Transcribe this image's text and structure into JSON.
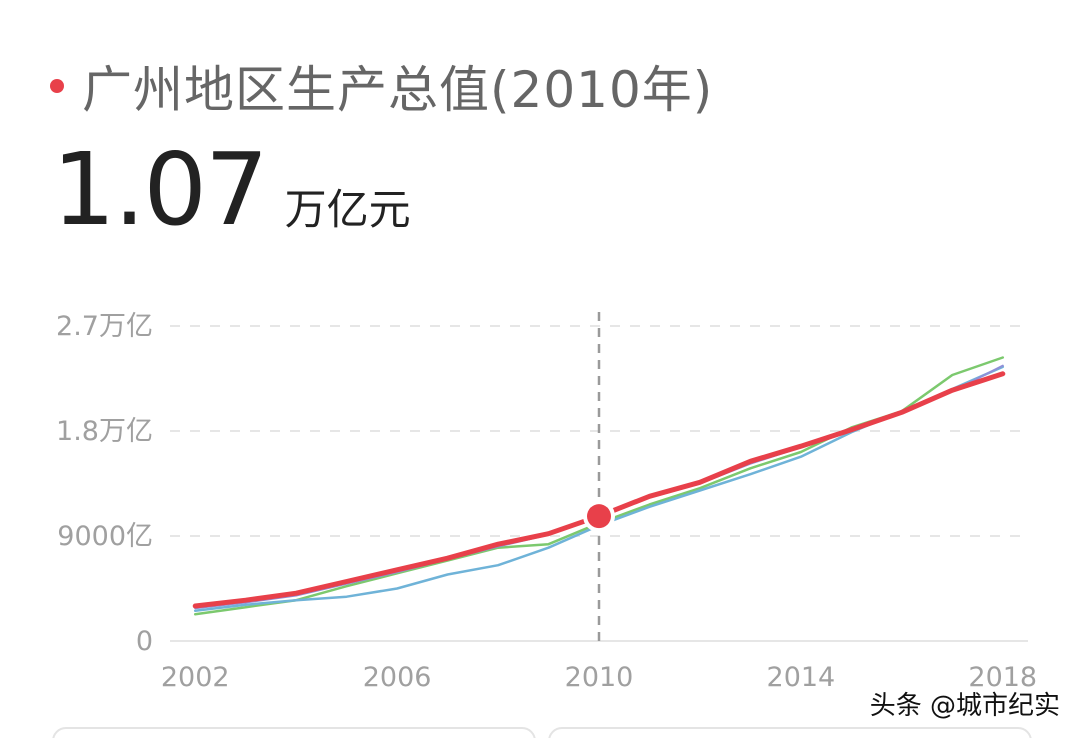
{
  "header": {
    "title": "广州地区生产总值(2010年)",
    "value": "1.07",
    "unit": "万亿元"
  },
  "watermark": "头条 @城市纪实",
  "colors": {
    "accent": "#e8404a",
    "series_green": "#7cc96e",
    "series_blue": "#6fb3d8",
    "series_purple": "#8f8fd8",
    "grid": "#e6e6e6",
    "label": "#a0a0a0"
  },
  "chart_data": {
    "type": "line",
    "x": [
      2002,
      2003,
      2004,
      2005,
      2006,
      2007,
      2008,
      2009,
      2010,
      2011,
      2012,
      2013,
      2014,
      2015,
      2016,
      2017,
      2018
    ],
    "xlim": [
      2001.5,
      2018.5
    ],
    "ylim": [
      0,
      27000
    ],
    "y_unit": "亿元",
    "yticks": [
      {
        "value": 0,
        "label": "0"
      },
      {
        "value": 9000,
        "label": "9000亿"
      },
      {
        "value": 18000,
        "label": "1.8万亿"
      },
      {
        "value": 27000,
        "label": "2.7万亿"
      }
    ],
    "xticks": [
      {
        "value": 2002,
        "label": "2002"
      },
      {
        "value": 2006,
        "label": "2006"
      },
      {
        "value": 2010,
        "label": "2010"
      },
      {
        "value": 2014,
        "label": "2014"
      },
      {
        "value": 2018,
        "label": "2018"
      }
    ],
    "grid": true,
    "highlight": {
      "x": 2010,
      "y": 10700
    },
    "series": [
      {
        "color": "#7cc96e",
        "width": 2.5,
        "values": [
          2300,
          2900,
          3500,
          4700,
          5800,
          6900,
          8000,
          8300,
          10100,
          11700,
          13100,
          14800,
          16200,
          18300,
          19700,
          22800,
          24300
        ]
      },
      {
        "color": "#6fb3d8",
        "width": 2.5,
        "values": [
          2600,
          3100,
          3500,
          3800,
          4500,
          5700,
          6500,
          8000,
          9900,
          11500,
          12900,
          14300,
          15800,
          17900,
          19700,
          21600,
          23500
        ]
      },
      {
        "color": "#8f8fd8",
        "width": 2,
        "values": [
          2800,
          3300,
          3900,
          4900,
          5900,
          7000,
          8100,
          9100,
          10600,
          12300,
          13500,
          15200,
          16600,
          18100,
          19600,
          21400,
          23600
        ]
      },
      {
        "color": "#e8404a",
        "width": 5,
        "values": [
          3000,
          3500,
          4100,
          5100,
          6100,
          7100,
          8300,
          9200,
          10700,
          12400,
          13600,
          15400,
          16700,
          18100,
          19600,
          21500,
          22900
        ]
      }
    ]
  }
}
